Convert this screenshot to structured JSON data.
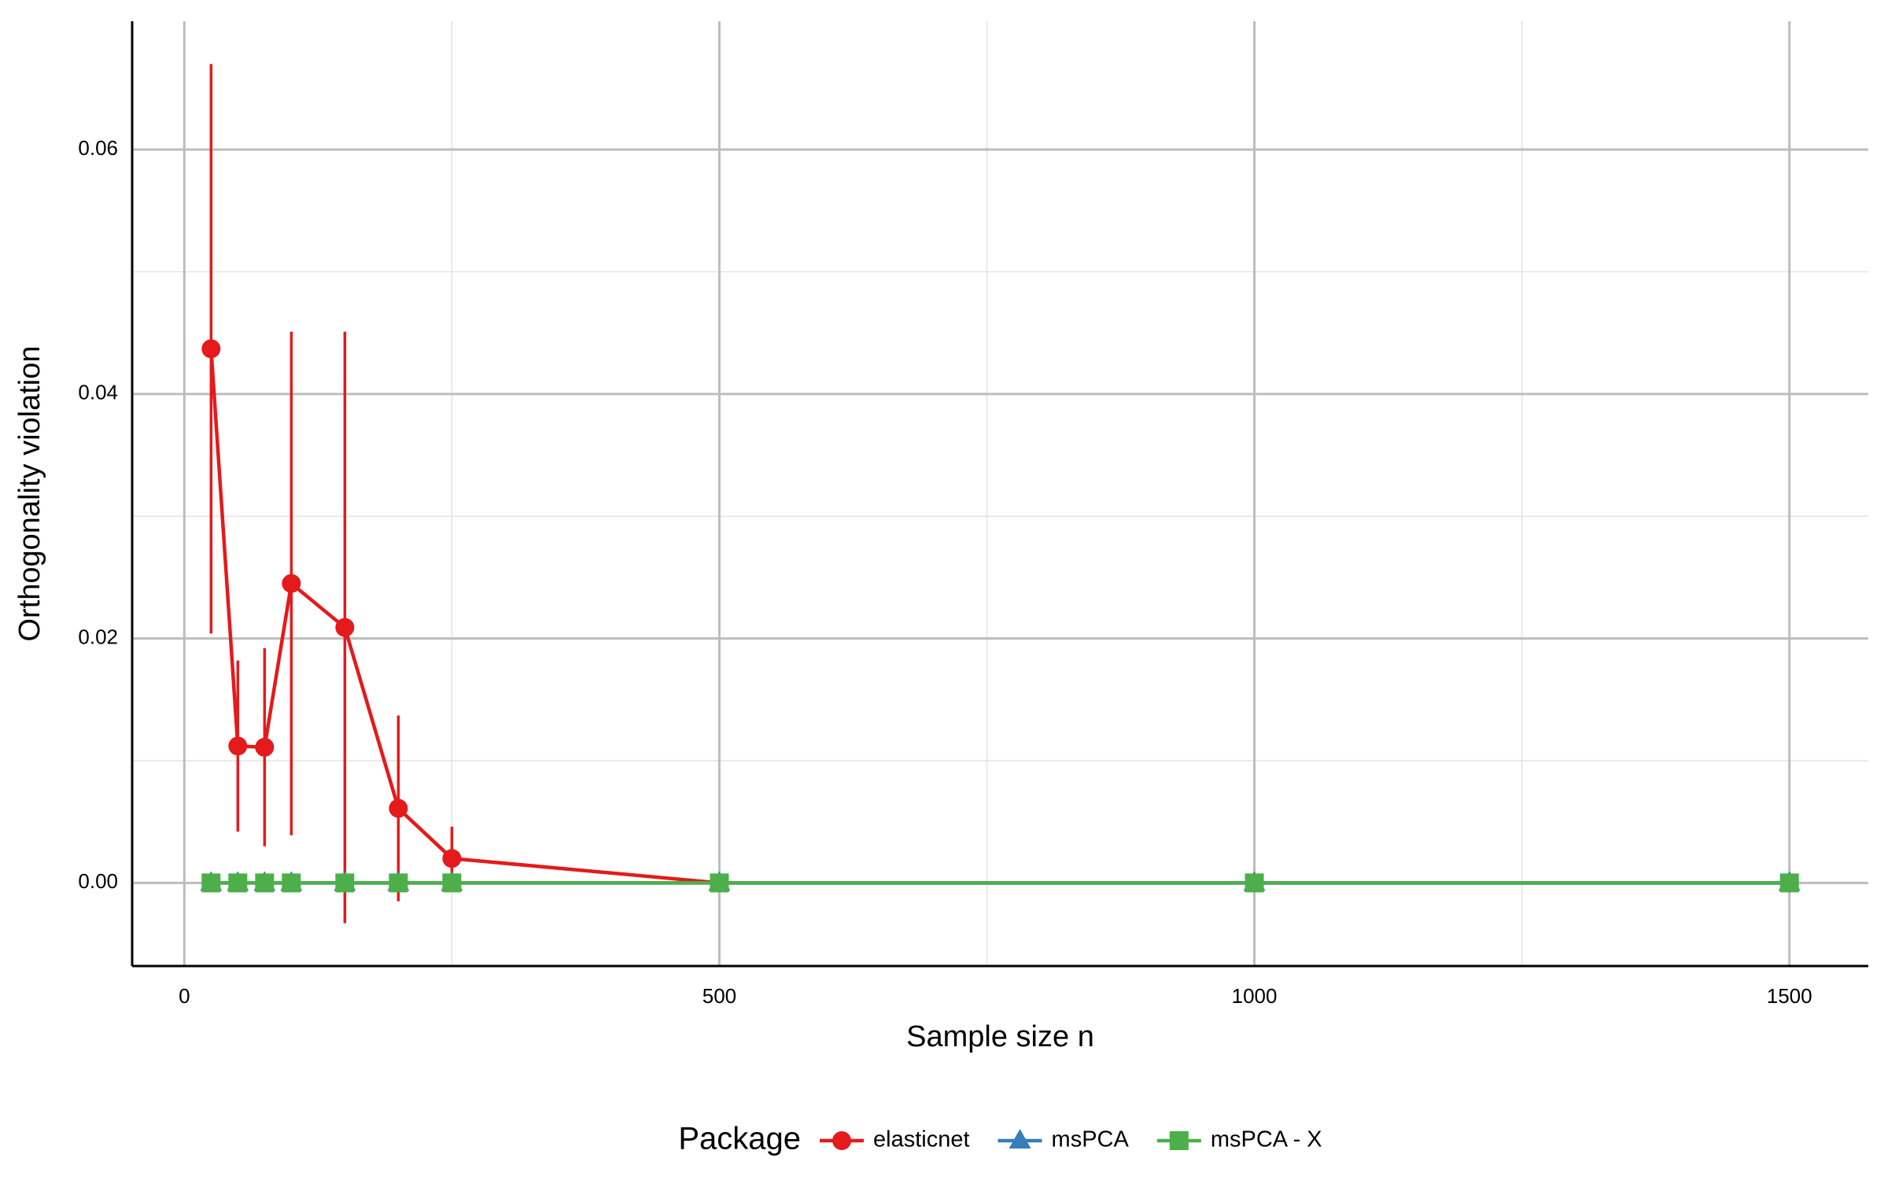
{
  "chart_data": {
    "type": "line",
    "x_label": "Sample size n",
    "y_label": "Orthogonality violation",
    "x": [
      25,
      50,
      75,
      100,
      150,
      200,
      250,
      500,
      1000,
      1500
    ],
    "series": [
      {
        "name": "elasticnet",
        "color": "#e41a1c",
        "marker": "circle",
        "values": [
          0.0437,
          0.0112,
          0.0111,
          0.0245,
          0.0209,
          0.0061,
          0.002,
          0,
          0,
          0
        ],
        "errors": [
          0.0233,
          0.007,
          0.0081,
          0.0206,
          0.0242,
          0.0076,
          0.0026,
          0,
          0,
          0
        ]
      },
      {
        "name": "msPCA",
        "color": "#377eb8",
        "marker": "triangle",
        "values": [
          0,
          0,
          0,
          0,
          0,
          0,
          0,
          0,
          0,
          0
        ]
      },
      {
        "name": "msPCA - X",
        "color": "#4daf4a",
        "marker": "square",
        "values": [
          0,
          0,
          0,
          0,
          0,
          0,
          0,
          0,
          0,
          0
        ]
      }
    ],
    "xlim": [
      -48.75,
      1573.75
    ],
    "ylim": [
      -0.0068,
      0.0705
    ],
    "xticks": [
      0,
      500,
      1000,
      1500
    ],
    "yticks": [
      {
        "value": 0,
        "label": "0.00"
      },
      {
        "value": 0.02,
        "label": "0.02"
      },
      {
        "value": 0.04,
        "label": "0.04"
      },
      {
        "value": 0.06,
        "label": "0.06"
      }
    ],
    "x_minor_ticks": [
      250,
      750,
      1250
    ],
    "y_minor_ticks": [
      0.01,
      0.03,
      0.05
    ],
    "grid": true,
    "legend_title": "Package",
    "legend_position": "bottom"
  }
}
